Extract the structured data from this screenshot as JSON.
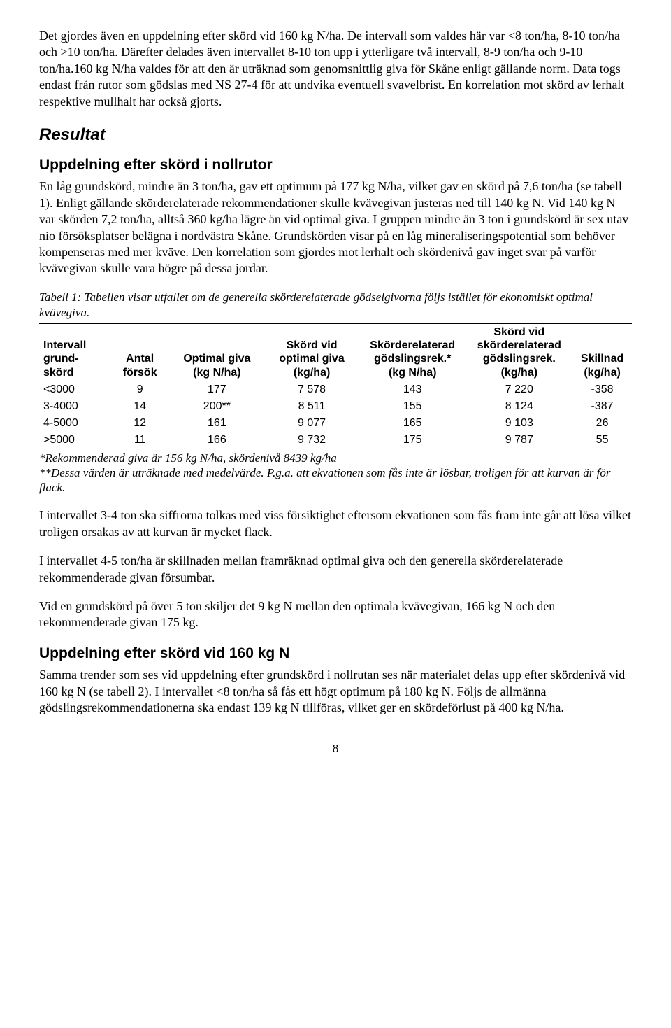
{
  "intro_para": "Det gjordes även en uppdelning efter skörd vid 160 kg N/ha. De intervall som valdes här var <8 ton/ha, 8-10 ton/ha och >10 ton/ha. Därefter delades även intervallet 8-10 ton upp i ytterligare två intervall, 8-9 ton/ha och 9-10 ton/ha.160 kg N/ha valdes för att den är uträknad som genomsnittlig giva för Skåne enligt gällande norm. Data togs endast från rutor som gödslas med NS 27-4 för att undvika eventuell svavelbrist. En korrelation mot skörd av lerhalt respektive mullhalt har också gjorts.",
  "result_heading": "Resultat",
  "sub1_heading": "Uppdelning efter skörd i nollrutor",
  "sub1_para": "En låg grundskörd, mindre än 3 ton/ha, gav ett optimum på 177 kg N/ha, vilket gav en skörd på 7,6 ton/ha (se tabell 1). Enligt gällande skörderelaterade rekommendationer skulle kvävegivan justeras ned till 140 kg N. Vid 140 kg N var skörden 7,2 ton/ha, alltså 360 kg/ha lägre än vid optimal giva. I gruppen mindre än 3 ton i grundskörd är sex utav nio försöksplatser belägna i nordvästra Skåne. Grundskörden visar på en låg mineraliseringspotential som behöver kompenseras med mer kväve. Den korrelation som gjordes mot lerhalt och skördenivå gav inget svar på varför kvävegivan skulle vara högre på dessa jordar.",
  "table_caption": "Tabell 1: Tabellen visar utfallet om de generella skörderelaterade gödselgivorna följs istället för ekonomiskt optimal kvävegiva.",
  "table": {
    "columns": [
      {
        "h1": "Intervall",
        "h2": "grund-",
        "h3": "skörd",
        "align": "left",
        "width": "12%"
      },
      {
        "h1": "",
        "h2": "Antal",
        "h3": "försök",
        "align": "center",
        "width": "10%"
      },
      {
        "h1": "",
        "h2": "Optimal giva",
        "h3": "(kg N/ha)",
        "align": "center",
        "width": "16%"
      },
      {
        "h1": "Skörd vid",
        "h2": "optimal giva",
        "h3": "(kg/ha)",
        "align": "center",
        "width": "16%"
      },
      {
        "h1": "Skörderelaterad",
        "h2": "gödslingsrek.*",
        "h3": "(kg N/ha)",
        "align": "center",
        "width": "18%"
      },
      {
        "h1": "Skörd vid",
        "h2": "skörderelaterad",
        "h3": "gödslingsrek.",
        "h4": "(kg/ha)",
        "align": "center",
        "width": "18%"
      },
      {
        "h1": "",
        "h2": "Skillnad",
        "h3": "(kg/ha)",
        "align": "center",
        "width": "10%"
      }
    ],
    "rows": [
      [
        "<3000",
        "9",
        "177",
        "7 578",
        "143",
        "7 220",
        "-358"
      ],
      [
        "3-4000",
        "14",
        "200**",
        "8 511",
        "155",
        "8 124",
        "-387"
      ],
      [
        "4-5000",
        "12",
        "161",
        "9 077",
        "165",
        "9 103",
        "26"
      ],
      [
        ">5000",
        "11",
        "166",
        "9 732",
        "175",
        "9 787",
        "55"
      ]
    ]
  },
  "table_footnote1": "*Rekommenderad giva är 156 kg N/ha, skördenivå 8439 kg/ha",
  "table_footnote2": "**Dessa värden är uträknade med medelvärde. P.g.a. att ekvationen som fås inte är lösbar, troligen för att kurvan är för flack.",
  "posttable_p1": "I intervallet 3-4 ton ska siffrorna tolkas med viss försiktighet eftersom ekvationen som fås fram inte går att lösa vilket troligen orsakas av att kurvan är mycket flack.",
  "posttable_p2": "I intervallet 4-5 ton/ha är skillnaden mellan framräknad optimal giva och den generella skörderelaterade rekommenderade givan försumbar.",
  "posttable_p3": "Vid en grundskörd på över 5 ton skiljer det 9 kg N mellan den optimala kvävegivan, 166 kg N och den rekommenderade givan 175 kg.",
  "sub2_heading": "Uppdelning efter skörd vid 160 kg N",
  "sub2_para": "Samma trender som ses vid uppdelning efter grundskörd i nollrutan ses när materialet delas upp efter skördenivå vid 160 kg N (se tabell 2). I intervallet <8 ton/ha så fås ett högt optimum på 180 kg N. Följs de allmänna gödslingsrekommendationerna ska endast 139 kg N tillföras, vilket ger en skördeförlust på 400 kg N/ha.",
  "page_number": "8"
}
